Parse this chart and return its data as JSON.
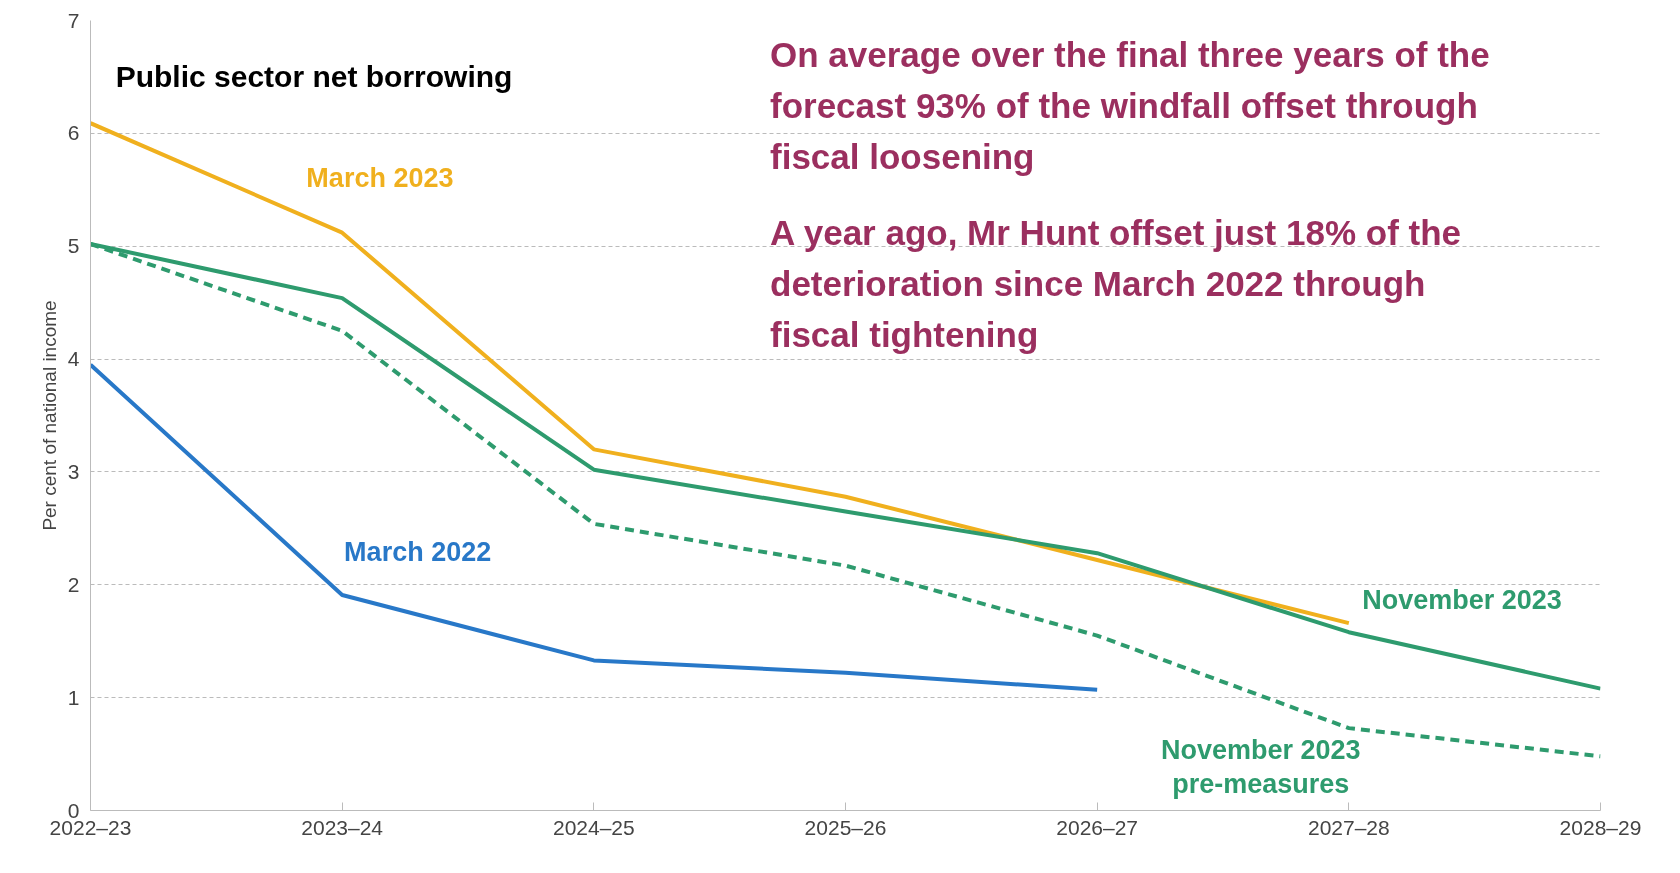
{
  "chart_data": {
    "type": "line",
    "title": "Public sector net borrowing",
    "ylabel": "Per cent of national income",
    "categories": [
      "2022–23",
      "2023–24",
      "2024–25",
      "2025–26",
      "2026–27",
      "2027–28",
      "2028–29"
    ],
    "ylim": [
      0,
      7
    ],
    "yticks": [
      0,
      1,
      2,
      3,
      4,
      5,
      6,
      7
    ],
    "grid": "y",
    "marker": "none",
    "series": [
      {
        "name": "March 2022",
        "color": "#2878c8",
        "line_style": "solid",
        "values": [
          3.95,
          1.91,
          1.33,
          1.22,
          1.07,
          null,
          null
        ]
      },
      {
        "name": "March 2023",
        "color": "#f0b01e",
        "line_style": "solid",
        "values": [
          6.09,
          5.12,
          3.2,
          2.78,
          2.22,
          1.66,
          null
        ]
      },
      {
        "name": "November 2023",
        "color": "#2e9b6e",
        "line_style": "solid",
        "values": [
          5.02,
          4.54,
          3.02,
          2.65,
          2.28,
          1.58,
          1.08
        ]
      },
      {
        "name": "November 2023\npre-measures",
        "color": "#2e9b6e",
        "line_style": "dashed",
        "values": [
          5.02,
          4.25,
          2.54,
          2.17,
          1.55,
          0.73,
          0.48
        ]
      }
    ],
    "annotations": [
      "On average over the final three years of the\nforecast 93% of the windfall offset through\nfiscal loosening",
      "A year ago, Mr Hunt offset just 18% of the\ndeterioration since March 2022 through\nfiscal tightening"
    ]
  }
}
